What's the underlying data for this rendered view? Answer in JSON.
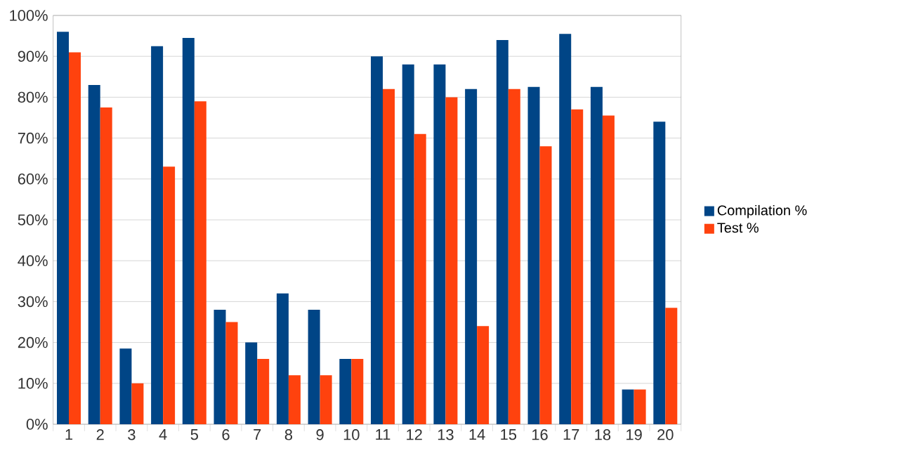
{
  "chart_data": {
    "type": "bar",
    "categories": [
      "1",
      "2",
      "3",
      "4",
      "5",
      "6",
      "7",
      "8",
      "9",
      "10",
      "11",
      "12",
      "13",
      "14",
      "15",
      "16",
      "17",
      "18",
      "19",
      "20"
    ],
    "series": [
      {
        "name": "Compilation %",
        "color": "#004586",
        "values": [
          96,
          83,
          18.5,
          92.5,
          94.5,
          28,
          20,
          32,
          28,
          16,
          90,
          88,
          88,
          82,
          94,
          82.5,
          95.5,
          82.5,
          8.5,
          74
        ]
      },
      {
        "name": "Test %",
        "color": "#ff420e",
        "values": [
          91,
          77.5,
          10,
          63,
          79,
          25,
          16,
          12,
          12,
          16,
          82,
          71,
          80,
          24,
          82,
          68,
          77,
          75.5,
          8.5,
          28.5
        ]
      }
    ],
    "ylim": [
      0,
      100
    ],
    "yticks": [
      {
        "value": 0,
        "label": "0%"
      },
      {
        "value": 10,
        "label": "10%"
      },
      {
        "value": 20,
        "label": "20%"
      },
      {
        "value": 30,
        "label": "30%"
      },
      {
        "value": 40,
        "label": "40%"
      },
      {
        "value": 50,
        "label": "50%"
      },
      {
        "value": 60,
        "label": "60%"
      },
      {
        "value": 70,
        "label": "70%"
      },
      {
        "value": 80,
        "label": "80%"
      },
      {
        "value": 90,
        "label": "90%"
      },
      {
        "value": 100,
        "label": "100%"
      }
    ],
    "grid": "y",
    "legend": "right"
  }
}
